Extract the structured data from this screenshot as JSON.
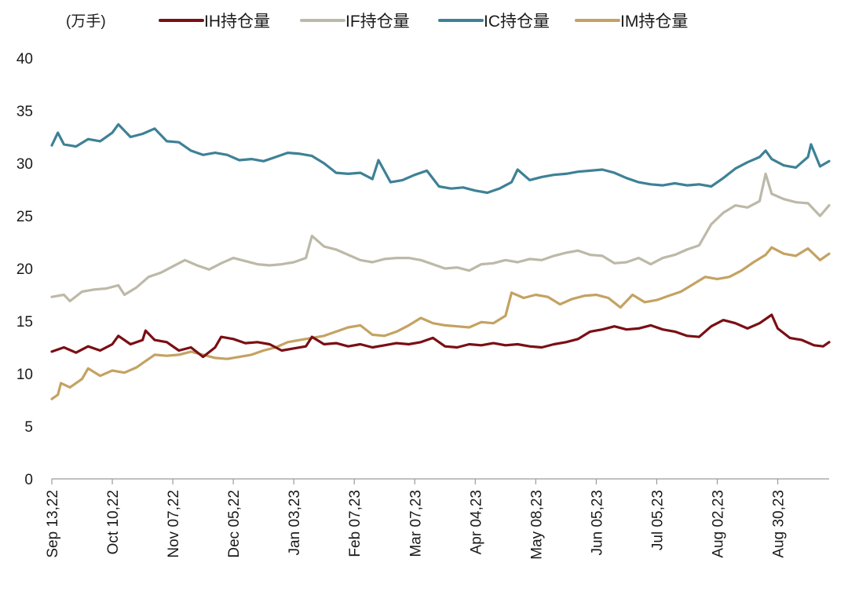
{
  "chart_data": {
    "type": "line",
    "unit_label": "(万手)",
    "y_ticks": [
      "0",
      "5",
      "10",
      "15",
      "20",
      "25",
      "30",
      "35",
      "40"
    ],
    "ylim": [
      0,
      40
    ],
    "x_tick_labels": [
      "Sep 13,22",
      "Oct 10,22",
      "Nov 07,22",
      "Dec 05,22",
      "Jan 03,23",
      "Feb 07,23",
      "Mar 07,23",
      "Apr 04,23",
      "May 08,23",
      "Jun 05,23",
      "Jul 05,23",
      "Aug 02,23",
      "Aug 30,23"
    ],
    "x_range": [
      0,
      257
    ],
    "x_tick_positions": [
      0,
      20,
      40,
      60,
      80,
      100,
      120,
      140,
      160,
      180,
      200,
      220,
      240
    ],
    "grid": false,
    "legend_position": "top",
    "series": [
      {
        "name": "IH持仓量",
        "color": "#7a0f14",
        "points": [
          [
            0,
            12.1
          ],
          [
            4,
            12.5
          ],
          [
            8,
            12.0
          ],
          [
            12,
            12.6
          ],
          [
            16,
            12.2
          ],
          [
            20,
            12.8
          ],
          [
            22,
            13.6
          ],
          [
            26,
            12.8
          ],
          [
            30,
            13.2
          ],
          [
            31,
            14.1
          ],
          [
            34,
            13.2
          ],
          [
            38,
            13.0
          ],
          [
            42,
            12.2
          ],
          [
            46,
            12.5
          ],
          [
            50,
            11.6
          ],
          [
            54,
            12.5
          ],
          [
            56,
            13.5
          ],
          [
            60,
            13.3
          ],
          [
            64,
            12.9
          ],
          [
            68,
            13.0
          ],
          [
            72,
            12.8
          ],
          [
            76,
            12.2
          ],
          [
            80,
            12.4
          ],
          [
            84,
            12.6
          ],
          [
            86,
            13.5
          ],
          [
            90,
            12.8
          ],
          [
            94,
            12.9
          ],
          [
            98,
            12.6
          ],
          [
            102,
            12.8
          ],
          [
            106,
            12.5
          ],
          [
            110,
            12.7
          ],
          [
            114,
            12.9
          ],
          [
            118,
            12.8
          ],
          [
            122,
            13.0
          ],
          [
            126,
            13.4
          ],
          [
            130,
            12.6
          ],
          [
            134,
            12.5
          ],
          [
            138,
            12.8
          ],
          [
            142,
            12.7
          ],
          [
            146,
            12.9
          ],
          [
            150,
            12.7
          ],
          [
            154,
            12.8
          ],
          [
            158,
            12.6
          ],
          [
            162,
            12.5
          ],
          [
            166,
            12.8
          ],
          [
            170,
            13.0
          ],
          [
            174,
            13.3
          ],
          [
            178,
            14.0
          ],
          [
            182,
            14.2
          ],
          [
            186,
            14.5
          ],
          [
            190,
            14.2
          ],
          [
            194,
            14.3
          ],
          [
            198,
            14.6
          ],
          [
            202,
            14.2
          ],
          [
            206,
            14.0
          ],
          [
            210,
            13.6
          ],
          [
            214,
            13.5
          ],
          [
            218,
            14.5
          ],
          [
            222,
            15.1
          ],
          [
            226,
            14.8
          ],
          [
            230,
            14.3
          ],
          [
            234,
            14.8
          ],
          [
            238,
            15.6
          ],
          [
            240,
            14.3
          ],
          [
            244,
            13.4
          ],
          [
            248,
            13.2
          ],
          [
            252,
            12.7
          ],
          [
            255,
            12.6
          ],
          [
            257,
            13.0
          ]
        ]
      },
      {
        "name": "IF持仓量",
        "color": "#bdb9a8",
        "points": [
          [
            0,
            17.3
          ],
          [
            4,
            17.5
          ],
          [
            6,
            16.9
          ],
          [
            10,
            17.8
          ],
          [
            14,
            18.0
          ],
          [
            18,
            18.1
          ],
          [
            22,
            18.4
          ],
          [
            24,
            17.5
          ],
          [
            28,
            18.2
          ],
          [
            32,
            19.2
          ],
          [
            36,
            19.6
          ],
          [
            40,
            20.2
          ],
          [
            44,
            20.8
          ],
          [
            48,
            20.3
          ],
          [
            52,
            19.9
          ],
          [
            56,
            20.5
          ],
          [
            60,
            21.0
          ],
          [
            64,
            20.7
          ],
          [
            68,
            20.4
          ],
          [
            72,
            20.3
          ],
          [
            76,
            20.4
          ],
          [
            80,
            20.6
          ],
          [
            84,
            21.0
          ],
          [
            86,
            23.1
          ],
          [
            90,
            22.1
          ],
          [
            94,
            21.8
          ],
          [
            98,
            21.3
          ],
          [
            102,
            20.8
          ],
          [
            106,
            20.6
          ],
          [
            110,
            20.9
          ],
          [
            114,
            21.0
          ],
          [
            118,
            21.0
          ],
          [
            122,
            20.8
          ],
          [
            126,
            20.4
          ],
          [
            130,
            20.0
          ],
          [
            134,
            20.1
          ],
          [
            138,
            19.8
          ],
          [
            142,
            20.4
          ],
          [
            146,
            20.5
          ],
          [
            150,
            20.8
          ],
          [
            154,
            20.6
          ],
          [
            158,
            20.9
          ],
          [
            162,
            20.8
          ],
          [
            166,
            21.2
          ],
          [
            170,
            21.5
          ],
          [
            174,
            21.7
          ],
          [
            178,
            21.3
          ],
          [
            182,
            21.2
          ],
          [
            186,
            20.5
          ],
          [
            190,
            20.6
          ],
          [
            194,
            21.0
          ],
          [
            198,
            20.4
          ],
          [
            202,
            21.0
          ],
          [
            206,
            21.3
          ],
          [
            210,
            21.8
          ],
          [
            214,
            22.2
          ],
          [
            218,
            24.2
          ],
          [
            222,
            25.3
          ],
          [
            226,
            26.0
          ],
          [
            230,
            25.8
          ],
          [
            234,
            26.4
          ],
          [
            236,
            29.0
          ],
          [
            238,
            27.1
          ],
          [
            242,
            26.6
          ],
          [
            246,
            26.3
          ],
          [
            250,
            26.2
          ],
          [
            254,
            25.0
          ],
          [
            257,
            26.0
          ]
        ]
      },
      {
        "name": "IC持仓量",
        "color": "#3e8196",
        "points": [
          [
            0,
            31.7
          ],
          [
            2,
            32.9
          ],
          [
            4,
            31.8
          ],
          [
            8,
            31.6
          ],
          [
            12,
            32.3
          ],
          [
            16,
            32.1
          ],
          [
            20,
            32.9
          ],
          [
            22,
            33.7
          ],
          [
            26,
            32.5
          ],
          [
            30,
            32.8
          ],
          [
            34,
            33.3
          ],
          [
            38,
            32.1
          ],
          [
            42,
            32.0
          ],
          [
            46,
            31.2
          ],
          [
            50,
            30.8
          ],
          [
            54,
            31.0
          ],
          [
            58,
            30.8
          ],
          [
            62,
            30.3
          ],
          [
            66,
            30.4
          ],
          [
            70,
            30.2
          ],
          [
            74,
            30.6
          ],
          [
            78,
            31.0
          ],
          [
            82,
            30.9
          ],
          [
            86,
            30.7
          ],
          [
            90,
            30.0
          ],
          [
            94,
            29.1
          ],
          [
            98,
            29.0
          ],
          [
            102,
            29.1
          ],
          [
            106,
            28.5
          ],
          [
            108,
            30.3
          ],
          [
            112,
            28.2
          ],
          [
            116,
            28.4
          ],
          [
            120,
            28.9
          ],
          [
            124,
            29.3
          ],
          [
            128,
            27.8
          ],
          [
            132,
            27.6
          ],
          [
            136,
            27.7
          ],
          [
            140,
            27.4
          ],
          [
            144,
            27.2
          ],
          [
            148,
            27.6
          ],
          [
            152,
            28.2
          ],
          [
            154,
            29.4
          ],
          [
            158,
            28.4
          ],
          [
            162,
            28.7
          ],
          [
            166,
            28.9
          ],
          [
            170,
            29.0
          ],
          [
            174,
            29.2
          ],
          [
            178,
            29.3
          ],
          [
            182,
            29.4
          ],
          [
            186,
            29.1
          ],
          [
            190,
            28.6
          ],
          [
            194,
            28.2
          ],
          [
            198,
            28.0
          ],
          [
            202,
            27.9
          ],
          [
            206,
            28.1
          ],
          [
            210,
            27.9
          ],
          [
            214,
            28.0
          ],
          [
            218,
            27.8
          ],
          [
            222,
            28.6
          ],
          [
            226,
            29.5
          ],
          [
            230,
            30.1
          ],
          [
            234,
            30.6
          ],
          [
            236,
            31.2
          ],
          [
            238,
            30.4
          ],
          [
            242,
            29.8
          ],
          [
            246,
            29.6
          ],
          [
            250,
            30.6
          ],
          [
            251,
            31.8
          ],
          [
            254,
            29.7
          ],
          [
            257,
            30.2
          ]
        ]
      },
      {
        "name": "IM持仓量",
        "color": "#c4a262",
        "points": [
          [
            0,
            7.6
          ],
          [
            2,
            8.0
          ],
          [
            3,
            9.1
          ],
          [
            6,
            8.7
          ],
          [
            10,
            9.5
          ],
          [
            12,
            10.5
          ],
          [
            16,
            9.8
          ],
          [
            20,
            10.3
          ],
          [
            24,
            10.1
          ],
          [
            28,
            10.6
          ],
          [
            30,
            11.0
          ],
          [
            34,
            11.8
          ],
          [
            38,
            11.7
          ],
          [
            42,
            11.8
          ],
          [
            46,
            12.1
          ],
          [
            50,
            11.8
          ],
          [
            54,
            11.5
          ],
          [
            58,
            11.4
          ],
          [
            62,
            11.6
          ],
          [
            66,
            11.8
          ],
          [
            70,
            12.2
          ],
          [
            74,
            12.5
          ],
          [
            78,
            13.0
          ],
          [
            82,
            13.2
          ],
          [
            86,
            13.4
          ],
          [
            90,
            13.6
          ],
          [
            94,
            14.0
          ],
          [
            98,
            14.4
          ],
          [
            102,
            14.6
          ],
          [
            106,
            13.7
          ],
          [
            110,
            13.6
          ],
          [
            114,
            14.0
          ],
          [
            118,
            14.6
          ],
          [
            122,
            15.3
          ],
          [
            126,
            14.8
          ],
          [
            130,
            14.6
          ],
          [
            134,
            14.5
          ],
          [
            138,
            14.4
          ],
          [
            142,
            14.9
          ],
          [
            146,
            14.8
          ],
          [
            150,
            15.5
          ],
          [
            152,
            17.7
          ],
          [
            156,
            17.2
          ],
          [
            160,
            17.5
          ],
          [
            164,
            17.3
          ],
          [
            168,
            16.6
          ],
          [
            172,
            17.1
          ],
          [
            176,
            17.4
          ],
          [
            180,
            17.5
          ],
          [
            184,
            17.2
          ],
          [
            188,
            16.3
          ],
          [
            192,
            17.5
          ],
          [
            196,
            16.8
          ],
          [
            200,
            17.0
          ],
          [
            204,
            17.4
          ],
          [
            208,
            17.8
          ],
          [
            212,
            18.5
          ],
          [
            216,
            19.2
          ],
          [
            220,
            19.0
          ],
          [
            224,
            19.2
          ],
          [
            228,
            19.8
          ],
          [
            232,
            20.6
          ],
          [
            236,
            21.3
          ],
          [
            238,
            22.0
          ],
          [
            242,
            21.4
          ],
          [
            246,
            21.2
          ],
          [
            250,
            21.9
          ],
          [
            254,
            20.8
          ],
          [
            257,
            21.4
          ]
        ]
      }
    ]
  }
}
